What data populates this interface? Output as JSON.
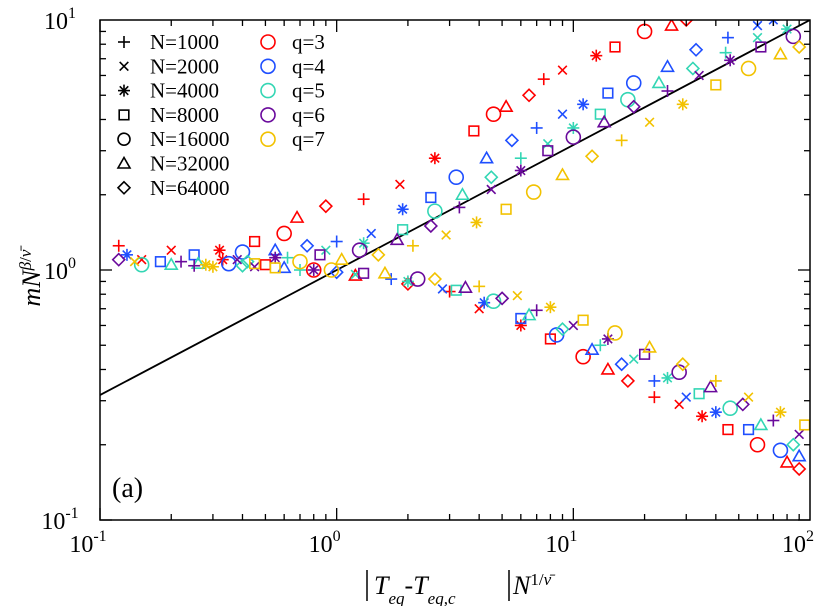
{
  "chart_data": {
    "type": "scatter",
    "xscale": "log",
    "yscale": "log",
    "xlim": [
      0.1,
      100
    ],
    "ylim": [
      0.1,
      10
    ],
    "x_ticks": [
      {
        "mantissa": "10",
        "exponent": "-1",
        "value": 0.1
      },
      {
        "mantissa": "10",
        "exponent": "0",
        "value": 1
      },
      {
        "mantissa": "10",
        "exponent": "1",
        "value": 10
      },
      {
        "mantissa": "10",
        "exponent": "2",
        "value": 100
      }
    ],
    "y_ticks": [
      {
        "mantissa": "10",
        "exponent": "-1",
        "value": 0.1
      },
      {
        "mantissa": "10",
        "exponent": "0",
        "value": 1
      },
      {
        "mantissa": "10",
        "exponent": "1",
        "value": 10
      }
    ],
    "xlabel": "|Teq-Teq,c|N^{1/ν̄}",
    "ylabel": "mN^{β/ν̄}",
    "panel_label": "(a)",
    "grid": false,
    "reference_line": {
      "x": [
        0.1,
        100
      ],
      "y": [
        0.316,
        10
      ]
    },
    "legend_sizes": [
      {
        "name": "N=1000",
        "marker": "plus"
      },
      {
        "name": "N=2000",
        "marker": "cross"
      },
      {
        "name": "N=4000",
        "marker": "asterisk"
      },
      {
        "name": "N=8000",
        "marker": "square"
      },
      {
        "name": "N=16000",
        "marker": "circle"
      },
      {
        "name": "N=32000",
        "marker": "triangle"
      },
      {
        "name": "N=64000",
        "marker": "diamond"
      }
    ],
    "legend_q": [
      {
        "name": "q=3",
        "color": "#ff0000"
      },
      {
        "name": "q=4",
        "color": "#1f4fff"
      },
      {
        "name": "q=5",
        "color": "#33d6b4"
      },
      {
        "name": "q=6",
        "color": "#6a0a9c"
      },
      {
        "name": "q=7",
        "color": "#f2c200"
      }
    ],
    "series": [
      {
        "q": "q=3",
        "color": "#ff0000",
        "branch": "upper",
        "points": [
          [
            0.12,
            1.25
          ],
          [
            0.2,
            1.2
          ],
          [
            0.32,
            1.2
          ],
          [
            0.45,
            1.3
          ],
          [
            0.6,
            1.4
          ],
          [
            0.68,
            1.62
          ],
          [
            0.9,
            1.8
          ],
          [
            1.3,
            1.92
          ],
          [
            1.85,
            2.2
          ],
          [
            2.6,
            2.8
          ],
          [
            3.8,
            3.6
          ],
          [
            4.6,
            4.2
          ],
          [
            5.2,
            4.5
          ],
          [
            6.5,
            5.0
          ],
          [
            7.5,
            5.8
          ],
          [
            9.0,
            6.3
          ],
          [
            12.5,
            7.2
          ],
          [
            15.0,
            7.8
          ],
          [
            20.0,
            9.0
          ],
          [
            26.0,
            9.5
          ],
          [
            30.0,
            10.0
          ]
        ]
      },
      {
        "q": "q=3",
        "color": "#ff0000",
        "branch": "lower",
        "points": [
          [
            0.15,
            1.1
          ],
          [
            0.33,
            1.1
          ],
          [
            0.5,
            1.05
          ],
          [
            0.8,
            1.0
          ],
          [
            1.2,
            0.95
          ],
          [
            2.0,
            0.88
          ],
          [
            3.0,
            0.82
          ],
          [
            4.0,
            0.7
          ],
          [
            6.0,
            0.6
          ],
          [
            8.0,
            0.53
          ],
          [
            11.0,
            0.45
          ],
          [
            14.0,
            0.4
          ],
          [
            17.0,
            0.36
          ],
          [
            22.0,
            0.31
          ],
          [
            28.0,
            0.29
          ],
          [
            35.0,
            0.26
          ],
          [
            45.0,
            0.23
          ],
          [
            60.0,
            0.2
          ],
          [
            80.0,
            0.17
          ],
          [
            90.0,
            0.16
          ]
        ]
      },
      {
        "q": "q=4",
        "color": "#1f4fff",
        "branch": "upper",
        "points": [
          [
            0.13,
            1.15
          ],
          [
            0.25,
            1.15
          ],
          [
            0.4,
            1.18
          ],
          [
            0.55,
            1.2
          ],
          [
            0.75,
            1.25
          ],
          [
            1.0,
            1.3
          ],
          [
            1.4,
            1.4
          ],
          [
            1.9,
            1.75
          ],
          [
            2.5,
            1.95
          ],
          [
            3.2,
            2.35
          ],
          [
            4.3,
            2.8
          ],
          [
            5.5,
            3.3
          ],
          [
            7.0,
            3.7
          ],
          [
            9.0,
            4.2
          ],
          [
            11.0,
            4.6
          ],
          [
            14.0,
            5.1
          ],
          [
            18.0,
            5.6
          ],
          [
            25.0,
            6.5
          ],
          [
            33.0,
            7.6
          ],
          [
            45.0,
            8.5
          ],
          [
            60.0,
            9.5
          ],
          [
            70.0,
            10.0
          ]
        ]
      },
      {
        "q": "q=4",
        "color": "#1f4fff",
        "branch": "lower",
        "points": [
          [
            0.18,
            1.08
          ],
          [
            0.35,
            1.06
          ],
          [
            0.6,
            1.02
          ],
          [
            1.0,
            0.98
          ],
          [
            1.7,
            0.92
          ],
          [
            2.8,
            0.84
          ],
          [
            4.2,
            0.74
          ],
          [
            6.0,
            0.64
          ],
          [
            8.5,
            0.55
          ],
          [
            12.0,
            0.48
          ],
          [
            16.0,
            0.42
          ],
          [
            22.0,
            0.36
          ],
          [
            30.0,
            0.31
          ],
          [
            40.0,
            0.27
          ],
          [
            55.0,
            0.23
          ],
          [
            75.0,
            0.19
          ],
          [
            90.0,
            0.18
          ]
        ]
      },
      {
        "q": "q=5",
        "color": "#33d6b4",
        "branch": "upper",
        "points": [
          [
            0.15,
            1.05
          ],
          [
            0.26,
            1.06
          ],
          [
            0.42,
            1.08
          ],
          [
            0.62,
            1.12
          ],
          [
            0.9,
            1.2
          ],
          [
            1.3,
            1.28
          ],
          [
            1.9,
            1.45
          ],
          [
            2.6,
            1.72
          ],
          [
            3.4,
            2.0
          ],
          [
            4.5,
            2.35
          ],
          [
            6.0,
            2.8
          ],
          [
            7.8,
            3.2
          ],
          [
            10.0,
            3.7
          ],
          [
            13.0,
            4.2
          ],
          [
            17.0,
            4.8
          ],
          [
            23.0,
            5.6
          ],
          [
            32.0,
            6.4
          ],
          [
            44.0,
            7.4
          ],
          [
            60.0,
            8.5
          ],
          [
            80.0,
            9.2
          ]
        ]
      },
      {
        "q": "q=5",
        "color": "#33d6b4",
        "branch": "lower",
        "points": [
          [
            0.2,
            1.05
          ],
          [
            0.4,
            1.04
          ],
          [
            0.7,
            1.0
          ],
          [
            1.2,
            0.96
          ],
          [
            2.0,
            0.9
          ],
          [
            3.2,
            0.83
          ],
          [
            4.6,
            0.75
          ],
          [
            6.5,
            0.66
          ],
          [
            9.0,
            0.58
          ],
          [
            13.0,
            0.5
          ],
          [
            18.0,
            0.44
          ],
          [
            25.0,
            0.37
          ],
          [
            34.0,
            0.32
          ],
          [
            46.0,
            0.28
          ],
          [
            62.0,
            0.24
          ],
          [
            85.0,
            0.2
          ]
        ]
      },
      {
        "q": "q=6",
        "color": "#6a0a9c",
        "branch": "upper",
        "points": [
          [
            0.12,
            1.1
          ],
          [
            0.22,
            1.08
          ],
          [
            0.38,
            1.1
          ],
          [
            0.55,
            1.12
          ],
          [
            0.85,
            1.15
          ],
          [
            1.25,
            1.2
          ],
          [
            1.8,
            1.32
          ],
          [
            2.5,
            1.5
          ],
          [
            3.3,
            1.78
          ],
          [
            4.5,
            2.1
          ],
          [
            6.0,
            2.5
          ],
          [
            7.8,
            3.0
          ],
          [
            10.0,
            3.4
          ],
          [
            13.5,
            3.9
          ],
          [
            18.0,
            4.5
          ],
          [
            25.0,
            5.2
          ],
          [
            34.0,
            6.0
          ],
          [
            46.0,
            6.9
          ],
          [
            62.0,
            7.8
          ],
          [
            85.0,
            8.6
          ]
        ]
      },
      {
        "q": "q=6",
        "color": "#6a0a9c",
        "branch": "lower",
        "points": [
          [
            0.25,
            1.04
          ],
          [
            0.45,
            1.03
          ],
          [
            0.8,
            1.0
          ],
          [
            1.3,
            0.97
          ],
          [
            2.2,
            0.92
          ],
          [
            3.5,
            0.85
          ],
          [
            5.0,
            0.77
          ],
          [
            7.0,
            0.69
          ],
          [
            10.0,
            0.6
          ],
          [
            14.0,
            0.53
          ],
          [
            20.0,
            0.46
          ],
          [
            28.0,
            0.39
          ],
          [
            38.0,
            0.34
          ],
          [
            52.0,
            0.29
          ],
          [
            70.0,
            0.25
          ],
          [
            90.0,
            0.22
          ]
        ]
      },
      {
        "q": "q=7",
        "color": "#f2c200",
        "branch": "upper",
        "points": [
          [
            0.14,
            1.08
          ],
          [
            0.28,
            1.05
          ],
          [
            0.45,
            1.06
          ],
          [
            0.7,
            1.08
          ],
          [
            1.05,
            1.1
          ],
          [
            1.5,
            1.15
          ],
          [
            2.1,
            1.25
          ],
          [
            2.9,
            1.38
          ],
          [
            3.9,
            1.55
          ],
          [
            5.2,
            1.75
          ],
          [
            6.8,
            2.05
          ],
          [
            9.0,
            2.4
          ],
          [
            12.0,
            2.85
          ],
          [
            16.0,
            3.3
          ],
          [
            21.0,
            3.9
          ],
          [
            29.0,
            4.6
          ],
          [
            40.0,
            5.5
          ],
          [
            55.0,
            6.4
          ],
          [
            75.0,
            7.3
          ],
          [
            90.0,
            7.8
          ]
        ]
      },
      {
        "q": "q=7",
        "color": "#f2c200",
        "branch": "lower",
        "points": [
          [
            0.3,
            1.03
          ],
          [
            0.55,
            1.02
          ],
          [
            0.95,
            1.0
          ],
          [
            1.6,
            0.97
          ],
          [
            2.6,
            0.92
          ],
          [
            4.0,
            0.86
          ],
          [
            5.8,
            0.79
          ],
          [
            8.0,
            0.71
          ],
          [
            11.0,
            0.63
          ],
          [
            15.0,
            0.56
          ],
          [
            21.0,
            0.49
          ],
          [
            29.0,
            0.42
          ],
          [
            40.0,
            0.36
          ],
          [
            55.0,
            0.31
          ],
          [
            75.0,
            0.27
          ],
          [
            95.0,
            0.24
          ]
        ]
      }
    ]
  }
}
